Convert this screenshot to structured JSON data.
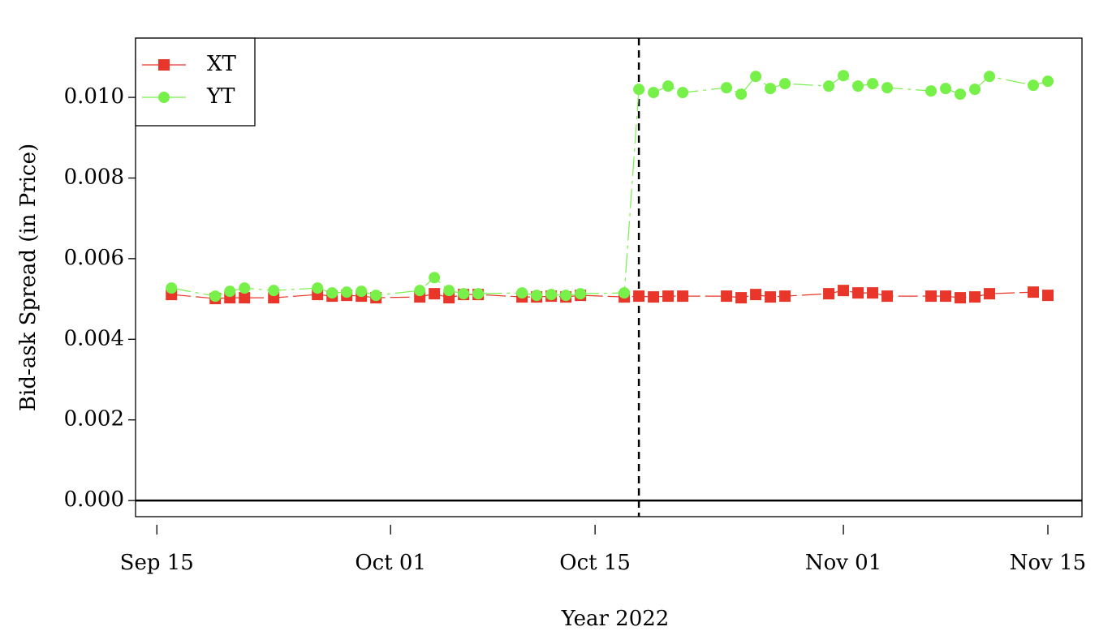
{
  "chart_data": {
    "type": "line",
    "xlabel": "Year 2022",
    "ylabel": "Bid-ask Spread (in Price)",
    "x": [
      "2022-09-16",
      "2022-09-19",
      "2022-09-20",
      "2022-09-21",
      "2022-09-23",
      "2022-09-26",
      "2022-09-27",
      "2022-09-28",
      "2022-09-29",
      "2022-09-30",
      "2022-10-03",
      "2022-10-04",
      "2022-10-05",
      "2022-10-06",
      "2022-10-07",
      "2022-10-10",
      "2022-10-11",
      "2022-10-12",
      "2022-10-13",
      "2022-10-14",
      "2022-10-17",
      "2022-10-18",
      "2022-10-19",
      "2022-10-20",
      "2022-10-21",
      "2022-10-24",
      "2022-10-25",
      "2022-10-26",
      "2022-10-27",
      "2022-10-28",
      "2022-10-31",
      "2022-11-01",
      "2022-11-02",
      "2022-11-03",
      "2022-11-04",
      "2022-11-07",
      "2022-11-08",
      "2022-11-09",
      "2022-11-10",
      "2022-11-11",
      "2022-11-14",
      "2022-11-15"
    ],
    "series": [
      {
        "name": "XT",
        "color": "#e8372a",
        "marker": "square",
        "values": [
          0.00511,
          0.00501,
          0.00503,
          0.00503,
          0.00503,
          0.00511,
          0.00507,
          0.00509,
          0.00507,
          0.00503,
          0.00505,
          0.00513,
          0.00503,
          0.00511,
          0.00511,
          0.00505,
          0.00505,
          0.00507,
          0.00505,
          0.00509,
          0.00505,
          0.00507,
          0.00505,
          0.00507,
          0.00507,
          0.00507,
          0.00503,
          0.00511,
          0.00505,
          0.00507,
          0.00513,
          0.00521,
          0.00515,
          0.00515,
          0.00507,
          0.00507,
          0.00507,
          0.00503,
          0.00505,
          0.00513,
          0.00517,
          0.00509
        ]
      },
      {
        "name": "YT",
        "color": "#77f04a",
        "marker": "circle",
        "values": [
          0.00527,
          0.00507,
          0.00519,
          0.00527,
          0.00521,
          0.00527,
          0.00515,
          0.00517,
          0.00519,
          0.00509,
          0.00521,
          0.00553,
          0.00521,
          0.00513,
          0.00513,
          0.00515,
          0.00509,
          0.00511,
          0.00509,
          0.00513,
          0.00515,
          0.0102,
          0.01012,
          0.01028,
          0.01012,
          0.01024,
          0.01008,
          0.01052,
          0.01022,
          0.01034,
          0.01028,
          0.01054,
          0.01028,
          0.01034,
          0.01024,
          0.01016,
          0.01022,
          0.01008,
          0.0102,
          0.01052,
          0.0103,
          0.0104
        ]
      }
    ],
    "xlim": [
      "2022-09-13T13:00",
      "2022-11-17T08:00"
    ],
    "xticks": [
      {
        "value": "2022-09-15",
        "label": "Sep 15"
      },
      {
        "value": "2022-10-01",
        "label": "Oct 01"
      },
      {
        "value": "2022-10-15",
        "label": "Oct 15"
      },
      {
        "value": "2022-11-01",
        "label": "Nov 01"
      },
      {
        "value": "2022-11-15",
        "label": "Nov 15"
      }
    ],
    "ylim": [
      -0.0004,
      0.01147
    ],
    "yticks": [
      {
        "value": 0,
        "label": "0.000"
      },
      {
        "value": 0.002,
        "label": "0.002"
      },
      {
        "value": 0.004,
        "label": "0.004"
      },
      {
        "value": 0.006,
        "label": "0.006"
      },
      {
        "value": 0.008,
        "label": "0.008"
      },
      {
        "value": 0.01,
        "label": "0.010"
      }
    ],
    "vline": "2022-10-18",
    "hline": 0,
    "legend": "top-left"
  }
}
